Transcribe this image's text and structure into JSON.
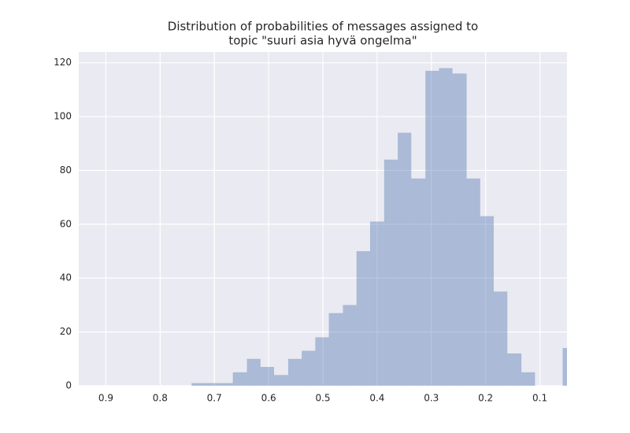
{
  "chart_data": {
    "type": "histogram",
    "title": [
      "Distribution of probabilities of messages assigned to",
      "topic \"suuri asia hyvä ongelma\""
    ],
    "bins": [
      0.033,
      0.058,
      0.084,
      0.109,
      0.134,
      0.16,
      0.185,
      0.21,
      0.235,
      0.261,
      0.286,
      0.311,
      0.337,
      0.362,
      0.387,
      0.413,
      0.438,
      0.463,
      0.489,
      0.514,
      0.539,
      0.564,
      0.59,
      0.615,
      0.64,
      0.666,
      0.691,
      0.716,
      0.742
    ],
    "values": [
      14,
      0,
      0,
      5,
      12,
      35,
      63,
      77,
      116,
      118,
      117,
      77,
      94,
      84,
      61,
      50,
      30,
      27,
      18,
      13,
      10,
      4,
      7,
      10,
      5,
      1,
      1,
      1
    ],
    "color": "#4c72b0",
    "opacity": 0.4,
    "xlim": [
      0.95,
      0.05
    ],
    "xticks": [
      0.9,
      0.8,
      0.7,
      0.6,
      0.5,
      0.4,
      0.3,
      0.2,
      0.1
    ],
    "ylim": [
      0,
      124
    ],
    "yticks": [
      0,
      20,
      40,
      60,
      80,
      100,
      120
    ],
    "grid": true
  }
}
